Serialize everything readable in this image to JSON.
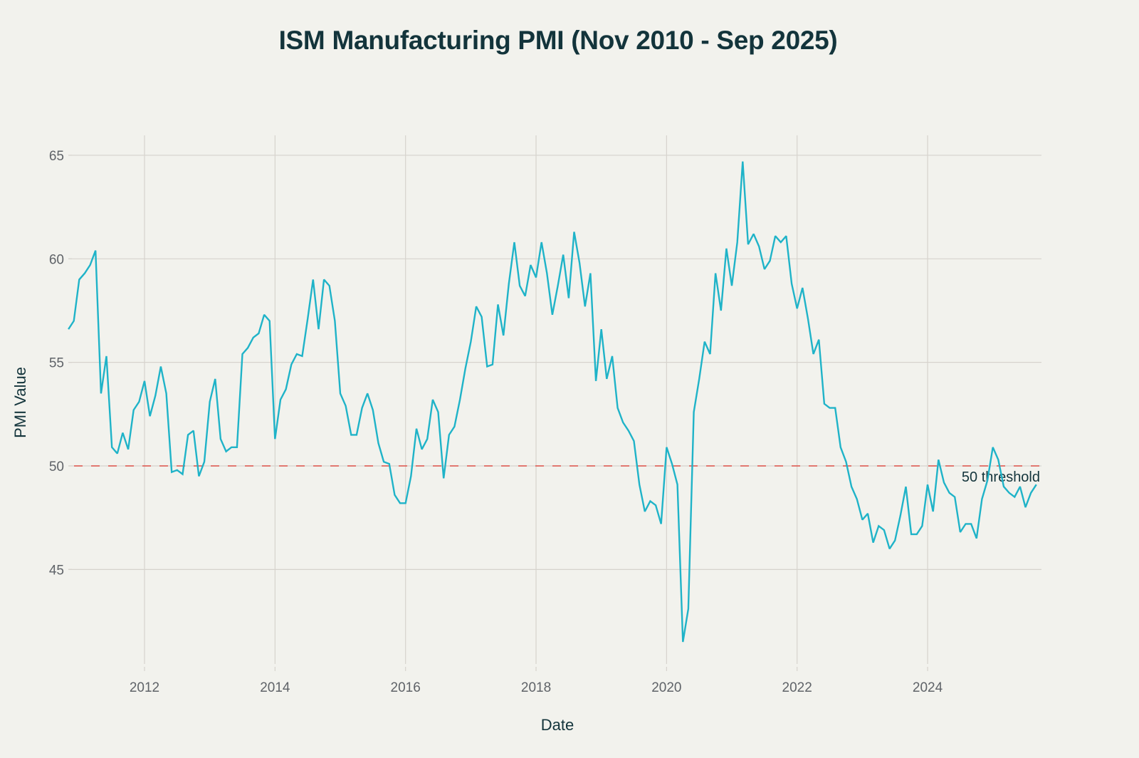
{
  "chart_data": {
    "type": "line",
    "title": "ISM Manufacturing PMI (Nov 2010 - Sep 2025)",
    "xlabel": "Date",
    "ylabel": "PMI Value",
    "x_start": "2010-11",
    "x_end": "2025-09",
    "x_frequency": "monthly",
    "xlim_years": [
      2010.83,
      2025.67
    ],
    "ylim": [
      40.6,
      66
    ],
    "x_ticks": [
      "2012",
      "2014",
      "2016",
      "2018",
      "2020",
      "2022",
      "2024"
    ],
    "y_ticks": [
      "45",
      "50",
      "55",
      "60",
      "65"
    ],
    "grid": true,
    "legend": "none",
    "series": [
      {
        "name": "ISM Manufacturing PMI",
        "color": "#1fb3c8",
        "values": [
          56.6,
          57.0,
          59.0,
          59.3,
          59.7,
          60.4,
          53.5,
          55.3,
          50.9,
          50.6,
          51.6,
          50.8,
          52.7,
          53.1,
          54.1,
          52.4,
          53.4,
          54.8,
          53.5,
          49.7,
          49.8,
          49.6,
          51.5,
          51.7,
          49.5,
          50.2,
          53.1,
          54.2,
          51.3,
          50.7,
          50.9,
          50.9,
          55.4,
          55.7,
          56.2,
          56.4,
          57.3,
          57.0,
          51.3,
          53.2,
          53.7,
          54.9,
          55.4,
          55.3,
          57.1,
          59.0,
          56.6,
          59.0,
          58.7,
          57.0,
          53.5,
          52.9,
          51.5,
          51.5,
          52.8,
          53.5,
          52.7,
          51.1,
          50.2,
          50.1,
          48.6,
          48.2,
          48.2,
          49.5,
          51.8,
          50.8,
          51.3,
          53.2,
          52.6,
          49.4,
          51.5,
          51.9,
          53.2,
          54.7,
          56.0,
          57.7,
          57.2,
          54.8,
          54.9,
          57.8,
          56.3,
          58.8,
          60.8,
          58.7,
          58.2,
          59.7,
          59.1,
          60.8,
          59.3,
          57.3,
          58.7,
          60.2,
          58.1,
          61.3,
          59.8,
          57.7,
          59.3,
          54.1,
          56.6,
          54.2,
          55.3,
          52.8,
          52.1,
          51.7,
          51.2,
          49.1,
          47.8,
          48.3,
          48.1,
          47.2,
          50.9,
          50.1,
          49.1,
          41.5,
          43.1,
          52.6,
          54.2,
          56.0,
          55.4,
          59.3,
          57.5,
          60.5,
          58.7,
          60.8,
          64.7,
          60.7,
          61.2,
          60.6,
          59.5,
          59.9,
          61.1,
          60.8,
          61.1,
          58.8,
          57.6,
          58.6,
          57.1,
          55.4,
          56.1,
          53.0,
          52.8,
          52.8,
          50.9,
          50.2,
          49.0,
          48.4,
          47.4,
          47.7,
          46.3,
          47.1,
          46.9,
          46.0,
          46.4,
          47.6,
          49.0,
          46.7,
          46.7,
          47.1,
          49.1,
          47.8,
          50.3,
          49.2,
          48.7,
          48.5,
          46.8,
          47.2,
          47.2,
          46.5,
          48.4,
          49.3,
          50.9,
          50.3,
          49.0,
          48.7,
          48.5,
          49.0,
          48.0,
          48.7,
          49.1
        ]
      }
    ],
    "reference_lines": [
      {
        "axis": "y",
        "value": 50,
        "style": "dashed",
        "color": "#e0524a",
        "label": "50 threshold"
      }
    ]
  }
}
